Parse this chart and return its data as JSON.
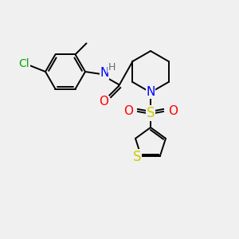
{
  "bg_color": "#f0f0f0",
  "bond_color": "#000000",
  "atom_colors": {
    "N": "#0000ff",
    "O": "#ff0000",
    "S_sulfonyl": "#cccc00",
    "S_thiophene": "#cccc00",
    "Cl": "#00aa00",
    "H": "#607070",
    "C": "#000000"
  },
  "font_size_atoms": 10,
  "line_width": 1.4
}
